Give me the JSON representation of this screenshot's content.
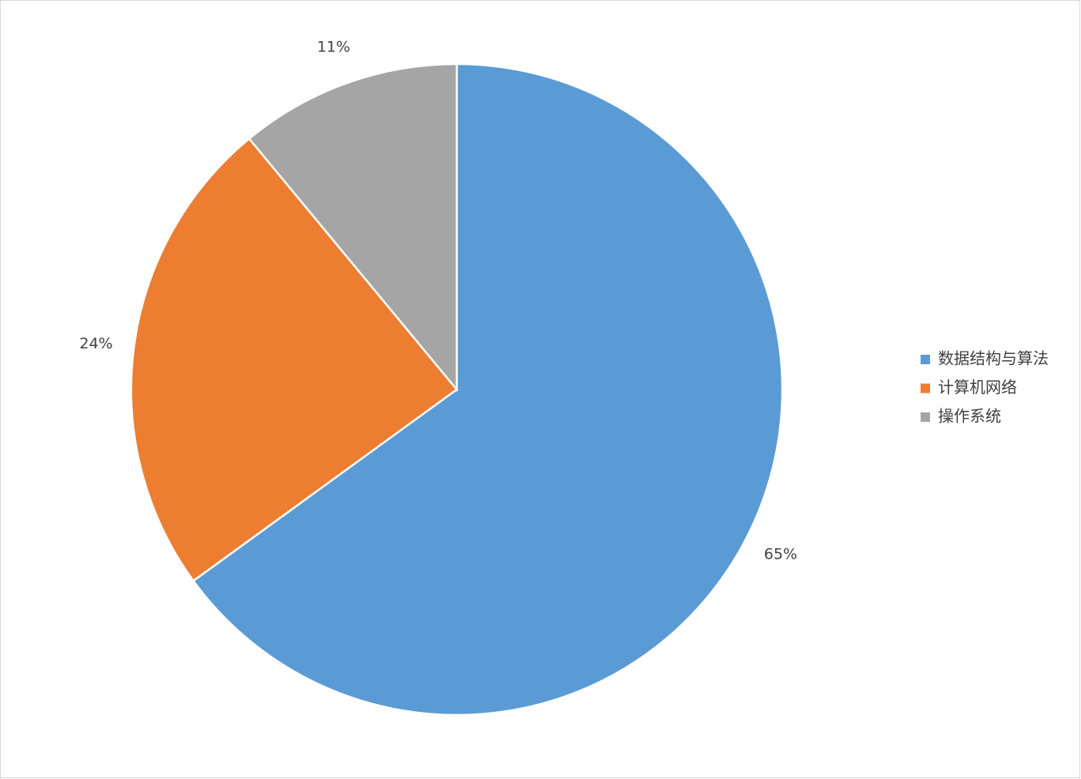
{
  "chart_data": {
    "type": "pie",
    "categories": [
      "数据结构与算法",
      "计算机网络",
      "操作系统"
    ],
    "values": [
      65,
      24,
      11
    ],
    "value_labels": [
      "65%",
      "24%",
      "11%"
    ],
    "colors": [
      "#5b9bd5",
      "#ed7d31",
      "#a5a5a5"
    ],
    "legend": "right"
  }
}
